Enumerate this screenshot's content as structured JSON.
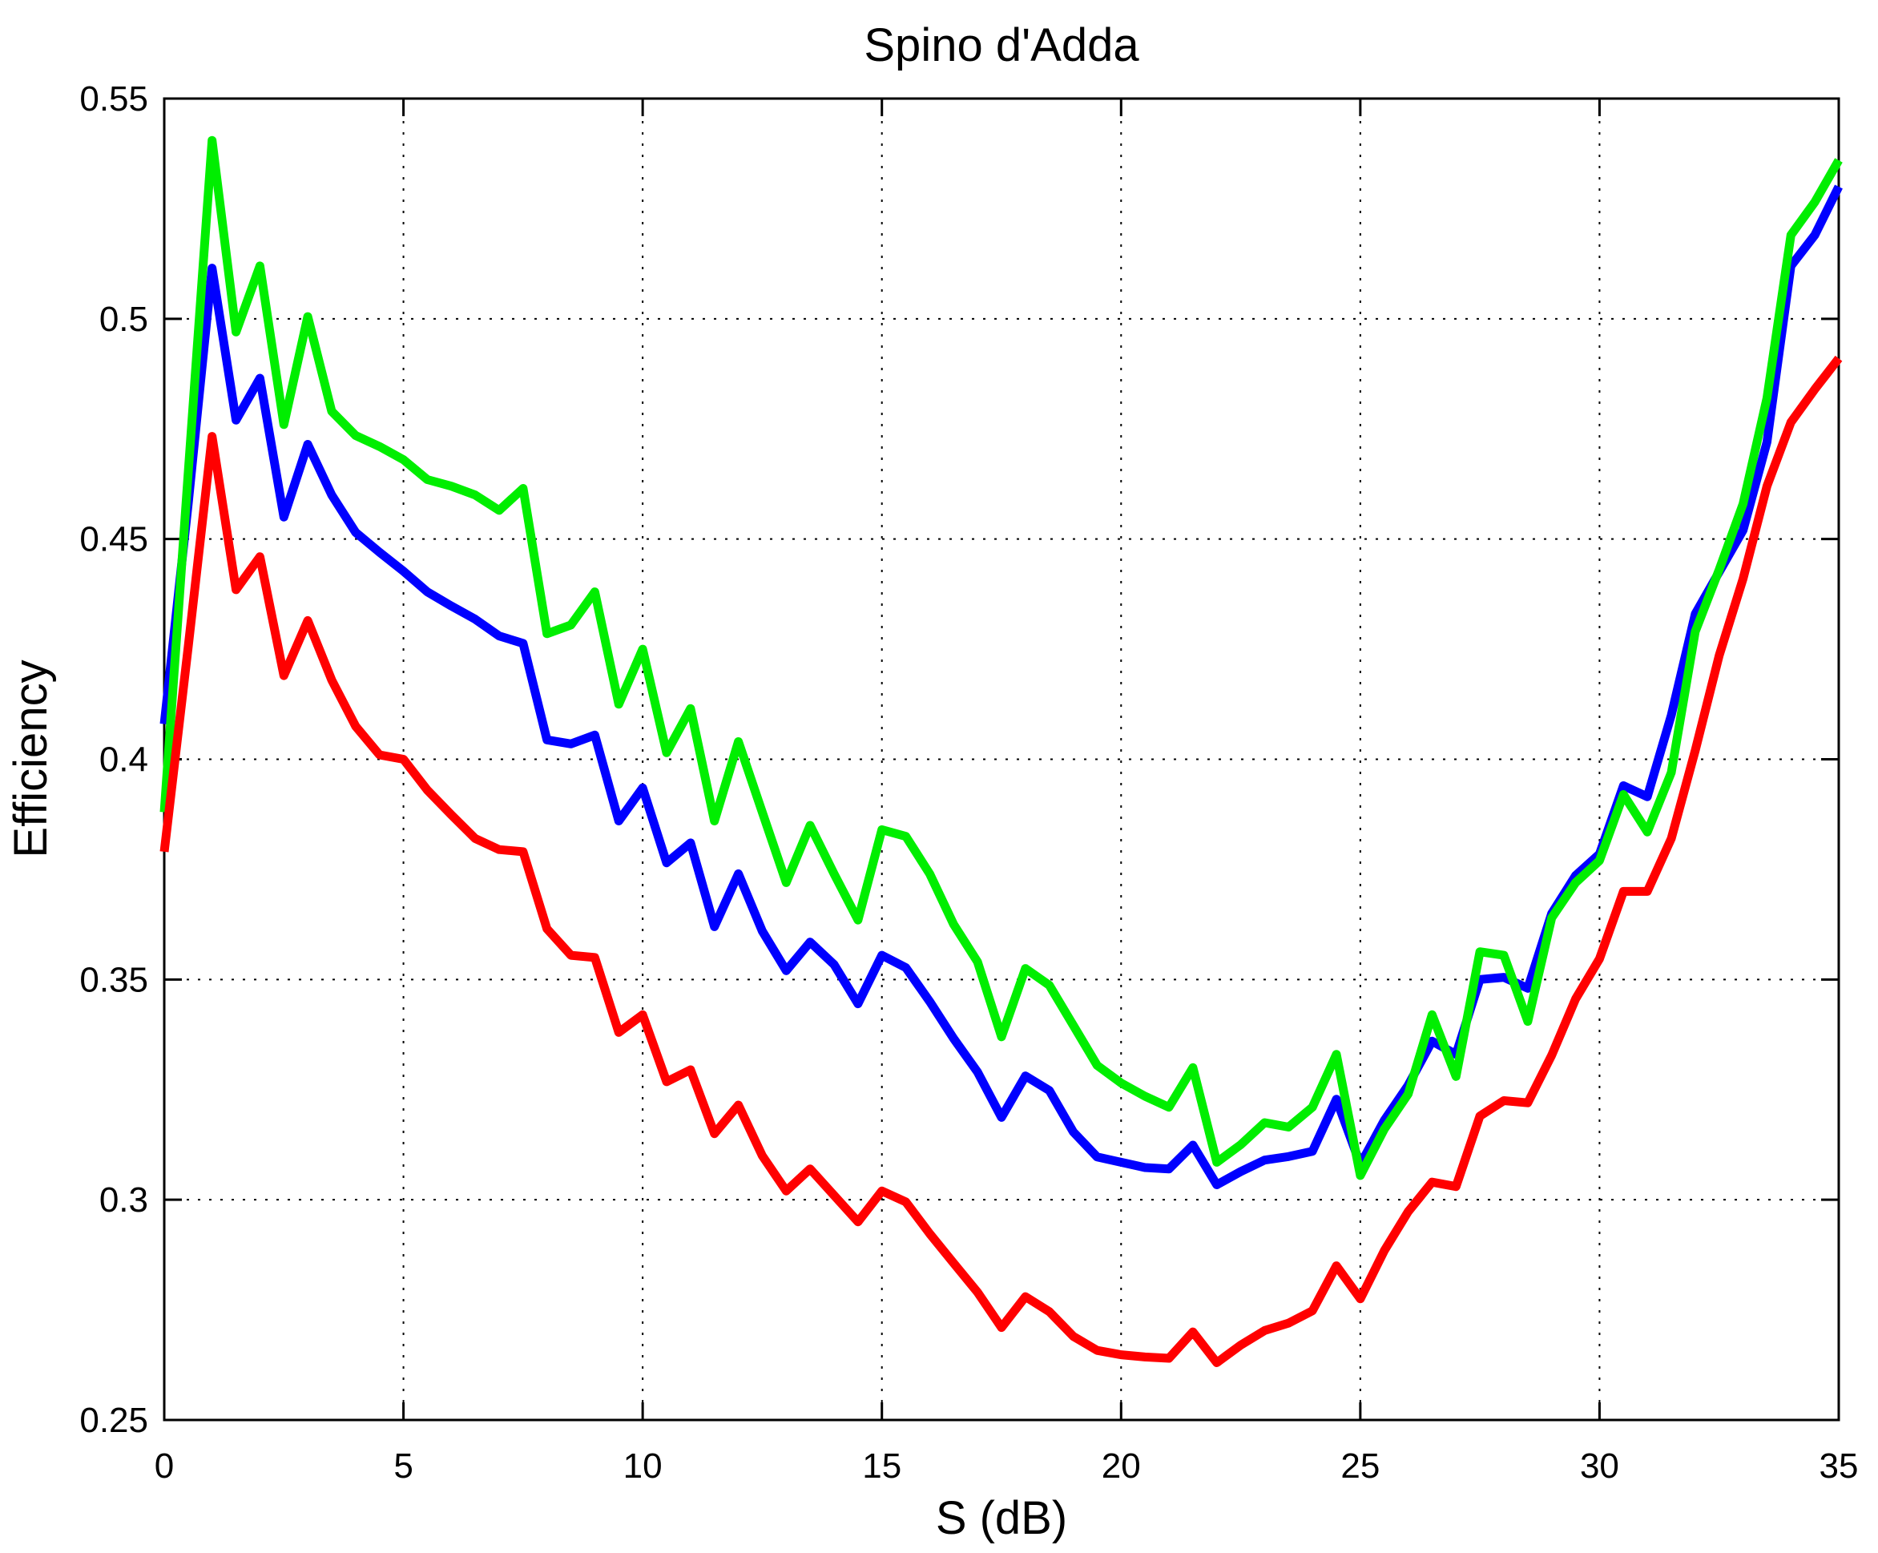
{
  "title": "Spino d'Adda",
  "chart_data": {
    "type": "line",
    "title": "Spino d'Adda",
    "xlabel": "S (dB)",
    "ylabel": "Efficiency",
    "xlim": [
      0,
      35
    ],
    "ylim": [
      0.25,
      0.55
    ],
    "xticks": [
      0,
      5,
      10,
      15,
      20,
      25,
      30,
      35
    ],
    "xtick_labels": [
      "0",
      "5",
      "10",
      "15",
      "20",
      "25",
      "30",
      "35"
    ],
    "yticks": [
      0.25,
      0.3,
      0.35,
      0.4,
      0.45,
      0.5,
      0.55
    ],
    "ytick_labels": [
      "0.25",
      "0.3",
      "0.35",
      "0.4",
      "0.45",
      "0.5",
      "0.55"
    ],
    "grid": true,
    "grid_style": "dotted",
    "legend": "none",
    "axis_color": "#000000",
    "background": "#ffffff",
    "x_step": 0.5,
    "x": [
      0,
      0.5,
      1,
      1.5,
      2,
      2.5,
      3,
      3.5,
      4,
      4.5,
      5,
      5.5,
      6,
      6.5,
      7,
      7.5,
      8,
      8.5,
      9,
      9.5,
      10,
      10.5,
      11,
      11.5,
      12,
      12.5,
      13,
      13.5,
      14,
      14.5,
      15,
      15.5,
      16,
      16.5,
      17,
      17.5,
      18,
      18.5,
      19,
      19.5,
      20,
      20.5,
      21,
      21.5,
      22,
      22.5,
      23,
      23.5,
      24,
      24.5,
      25,
      25.5,
      26,
      26.5,
      27,
      27.5,
      28,
      28.5,
      29,
      29.5,
      30,
      30.5,
      31,
      31.5,
      32,
      32.5,
      33,
      33.5,
      34,
      34.5,
      35
    ],
    "series": [
      {
        "name": "blue-curve",
        "color": "#0000ff",
        "values": [
          0.408,
          0.458,
          0.5115,
          0.477,
          0.4865,
          0.455,
          0.4715,
          0.46,
          0.4515,
          0.447,
          0.4427,
          0.438,
          0.4348,
          0.4318,
          0.428,
          0.4263,
          0.4044,
          0.4035,
          0.4055,
          0.386,
          0.3935,
          0.3765,
          0.381,
          0.362,
          0.374,
          0.361,
          0.352,
          0.3585,
          0.3534,
          0.3445,
          0.3555,
          0.3527,
          0.345,
          0.3366,
          0.329,
          0.3187,
          0.3281,
          0.3248,
          0.3154,
          0.3097,
          0.3085,
          0.3073,
          0.307,
          0.3124,
          0.3034,
          0.3064,
          0.309,
          0.3098,
          0.311,
          0.3228,
          0.308,
          0.318,
          0.326,
          0.336,
          0.333,
          0.35,
          0.3505,
          0.348,
          0.365,
          0.3736,
          0.3785,
          0.394,
          0.3915,
          0.41,
          0.433,
          0.4425,
          0.452,
          0.472,
          0.512,
          0.519,
          0.53
        ]
      },
      {
        "name": "green-curve",
        "color": "#00ee00",
        "values": [
          0.388,
          0.465,
          0.5405,
          0.497,
          0.512,
          0.476,
          0.5005,
          0.479,
          0.4735,
          0.471,
          0.468,
          0.4635,
          0.462,
          0.46,
          0.4565,
          0.4615,
          0.4285,
          0.4305,
          0.438,
          0.4125,
          0.425,
          0.4015,
          0.4115,
          0.386,
          0.404,
          0.388,
          0.372,
          0.385,
          0.374,
          0.3635,
          0.384,
          0.3825,
          0.374,
          0.3625,
          0.354,
          0.337,
          0.3525,
          0.3487,
          0.3396,
          0.3305,
          0.3265,
          0.3235,
          0.321,
          0.33,
          0.3085,
          0.3125,
          0.3175,
          0.3165,
          0.321,
          0.333,
          0.3055,
          0.316,
          0.324,
          0.342,
          0.328,
          0.3563,
          0.3555,
          0.3405,
          0.364,
          0.372,
          0.377,
          0.392,
          0.3835,
          0.397,
          0.429,
          0.443,
          0.458,
          0.482,
          0.519,
          0.5265,
          0.536
        ]
      },
      {
        "name": "red-curve",
        "color": "#ff0000",
        "values": [
          0.379,
          0.4255,
          0.4733,
          0.4385,
          0.446,
          0.419,
          0.4315,
          0.418,
          0.4075,
          0.401,
          0.4,
          0.393,
          0.3874,
          0.382,
          0.3795,
          0.379,
          0.3615,
          0.3555,
          0.355,
          0.338,
          0.342,
          0.3268,
          0.3295,
          0.315,
          0.3215,
          0.31,
          0.302,
          0.307,
          0.301,
          0.295,
          0.302,
          0.2995,
          0.2923,
          0.2856,
          0.279,
          0.271,
          0.278,
          0.2746,
          0.269,
          0.2658,
          0.2648,
          0.2643,
          0.264,
          0.27,
          0.263,
          0.267,
          0.2703,
          0.272,
          0.2748,
          0.285,
          0.2775,
          0.2884,
          0.2973,
          0.304,
          0.303,
          0.319,
          0.3225,
          0.322,
          0.3328,
          0.3456,
          0.3547,
          0.37,
          0.37,
          0.382,
          0.402,
          0.4235,
          0.441,
          0.462,
          0.4765,
          0.484,
          0.491
        ]
      }
    ]
  }
}
